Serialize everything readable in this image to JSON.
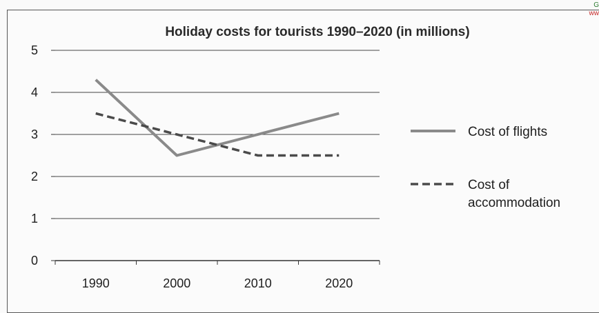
{
  "watermark": {
    "line1": "G",
    "line2": "ww"
  },
  "chart_data": {
    "type": "line",
    "title": "Holiday costs for tourists 1990–2020 (in millions)",
    "xlabel": "",
    "ylabel": "",
    "categories": [
      "1990",
      "2000",
      "2010",
      "2020"
    ],
    "ylim": [
      0,
      5
    ],
    "yticks": [
      0,
      1,
      2,
      3,
      4,
      5
    ],
    "grid": true,
    "legend_position": "right",
    "series": [
      {
        "name": "Cost of flights",
        "values": [
          4.3,
          2.5,
          3.0,
          3.5
        ],
        "style": "solid",
        "color": "#8a8a8a"
      },
      {
        "name": "Cost of accommodation",
        "values": [
          3.5,
          3.0,
          2.5,
          2.5
        ],
        "style": "dashed",
        "color": "#4a4a4a"
      }
    ],
    "legend": [
      {
        "lines": [
          "Cost of flights"
        ]
      },
      {
        "lines": [
          "Cost of",
          "accommodation"
        ]
      }
    ]
  }
}
